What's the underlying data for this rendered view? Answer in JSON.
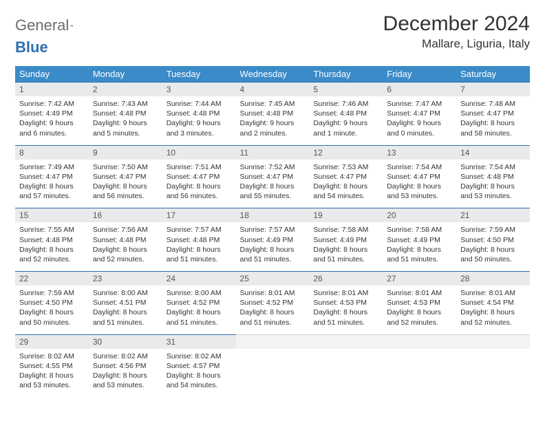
{
  "logo": {
    "general": "General",
    "blue": "Blue"
  },
  "title": "December 2024",
  "location": "Mallare, Liguria, Italy",
  "colors": {
    "header_bg": "#3b8bc9",
    "header_text": "#ffffff",
    "daynum_bg": "#e9eaeb",
    "row_divider": "#2f6fb0",
    "text": "#333333",
    "logo_gray": "#6b6b6b",
    "logo_blue": "#2f6fb0",
    "page_bg": "#ffffff"
  },
  "weekdays": [
    "Sunday",
    "Monday",
    "Tuesday",
    "Wednesday",
    "Thursday",
    "Friday",
    "Saturday"
  ],
  "weeks": [
    [
      {
        "n": "1",
        "sr": "Sunrise: 7:42 AM",
        "ss": "Sunset: 4:49 PM",
        "dl": "Daylight: 9 hours and 6 minutes."
      },
      {
        "n": "2",
        "sr": "Sunrise: 7:43 AM",
        "ss": "Sunset: 4:48 PM",
        "dl": "Daylight: 9 hours and 5 minutes."
      },
      {
        "n": "3",
        "sr": "Sunrise: 7:44 AM",
        "ss": "Sunset: 4:48 PM",
        "dl": "Daylight: 9 hours and 3 minutes."
      },
      {
        "n": "4",
        "sr": "Sunrise: 7:45 AM",
        "ss": "Sunset: 4:48 PM",
        "dl": "Daylight: 9 hours and 2 minutes."
      },
      {
        "n": "5",
        "sr": "Sunrise: 7:46 AM",
        "ss": "Sunset: 4:48 PM",
        "dl": "Daylight: 9 hours and 1 minute."
      },
      {
        "n": "6",
        "sr": "Sunrise: 7:47 AM",
        "ss": "Sunset: 4:47 PM",
        "dl": "Daylight: 9 hours and 0 minutes."
      },
      {
        "n": "7",
        "sr": "Sunrise: 7:48 AM",
        "ss": "Sunset: 4:47 PM",
        "dl": "Daylight: 8 hours and 58 minutes."
      }
    ],
    [
      {
        "n": "8",
        "sr": "Sunrise: 7:49 AM",
        "ss": "Sunset: 4:47 PM",
        "dl": "Daylight: 8 hours and 57 minutes."
      },
      {
        "n": "9",
        "sr": "Sunrise: 7:50 AM",
        "ss": "Sunset: 4:47 PM",
        "dl": "Daylight: 8 hours and 56 minutes."
      },
      {
        "n": "10",
        "sr": "Sunrise: 7:51 AM",
        "ss": "Sunset: 4:47 PM",
        "dl": "Daylight: 8 hours and 56 minutes."
      },
      {
        "n": "11",
        "sr": "Sunrise: 7:52 AM",
        "ss": "Sunset: 4:47 PM",
        "dl": "Daylight: 8 hours and 55 minutes."
      },
      {
        "n": "12",
        "sr": "Sunrise: 7:53 AM",
        "ss": "Sunset: 4:47 PM",
        "dl": "Daylight: 8 hours and 54 minutes."
      },
      {
        "n": "13",
        "sr": "Sunrise: 7:54 AM",
        "ss": "Sunset: 4:47 PM",
        "dl": "Daylight: 8 hours and 53 minutes."
      },
      {
        "n": "14",
        "sr": "Sunrise: 7:54 AM",
        "ss": "Sunset: 4:48 PM",
        "dl": "Daylight: 8 hours and 53 minutes."
      }
    ],
    [
      {
        "n": "15",
        "sr": "Sunrise: 7:55 AM",
        "ss": "Sunset: 4:48 PM",
        "dl": "Daylight: 8 hours and 52 minutes."
      },
      {
        "n": "16",
        "sr": "Sunrise: 7:56 AM",
        "ss": "Sunset: 4:48 PM",
        "dl": "Daylight: 8 hours and 52 minutes."
      },
      {
        "n": "17",
        "sr": "Sunrise: 7:57 AM",
        "ss": "Sunset: 4:48 PM",
        "dl": "Daylight: 8 hours and 51 minutes."
      },
      {
        "n": "18",
        "sr": "Sunrise: 7:57 AM",
        "ss": "Sunset: 4:49 PM",
        "dl": "Daylight: 8 hours and 51 minutes."
      },
      {
        "n": "19",
        "sr": "Sunrise: 7:58 AM",
        "ss": "Sunset: 4:49 PM",
        "dl": "Daylight: 8 hours and 51 minutes."
      },
      {
        "n": "20",
        "sr": "Sunrise: 7:58 AM",
        "ss": "Sunset: 4:49 PM",
        "dl": "Daylight: 8 hours and 51 minutes."
      },
      {
        "n": "21",
        "sr": "Sunrise: 7:59 AM",
        "ss": "Sunset: 4:50 PM",
        "dl": "Daylight: 8 hours and 50 minutes."
      }
    ],
    [
      {
        "n": "22",
        "sr": "Sunrise: 7:59 AM",
        "ss": "Sunset: 4:50 PM",
        "dl": "Daylight: 8 hours and 50 minutes."
      },
      {
        "n": "23",
        "sr": "Sunrise: 8:00 AM",
        "ss": "Sunset: 4:51 PM",
        "dl": "Daylight: 8 hours and 51 minutes."
      },
      {
        "n": "24",
        "sr": "Sunrise: 8:00 AM",
        "ss": "Sunset: 4:52 PM",
        "dl": "Daylight: 8 hours and 51 minutes."
      },
      {
        "n": "25",
        "sr": "Sunrise: 8:01 AM",
        "ss": "Sunset: 4:52 PM",
        "dl": "Daylight: 8 hours and 51 minutes."
      },
      {
        "n": "26",
        "sr": "Sunrise: 8:01 AM",
        "ss": "Sunset: 4:53 PM",
        "dl": "Daylight: 8 hours and 51 minutes."
      },
      {
        "n": "27",
        "sr": "Sunrise: 8:01 AM",
        "ss": "Sunset: 4:53 PM",
        "dl": "Daylight: 8 hours and 52 minutes."
      },
      {
        "n": "28",
        "sr": "Sunrise: 8:01 AM",
        "ss": "Sunset: 4:54 PM",
        "dl": "Daylight: 8 hours and 52 minutes."
      }
    ],
    [
      {
        "n": "29",
        "sr": "Sunrise: 8:02 AM",
        "ss": "Sunset: 4:55 PM",
        "dl": "Daylight: 8 hours and 53 minutes."
      },
      {
        "n": "30",
        "sr": "Sunrise: 8:02 AM",
        "ss": "Sunset: 4:56 PM",
        "dl": "Daylight: 8 hours and 53 minutes."
      },
      {
        "n": "31",
        "sr": "Sunrise: 8:02 AM",
        "ss": "Sunset: 4:57 PM",
        "dl": "Daylight: 8 hours and 54 minutes."
      },
      null,
      null,
      null,
      null
    ]
  ]
}
